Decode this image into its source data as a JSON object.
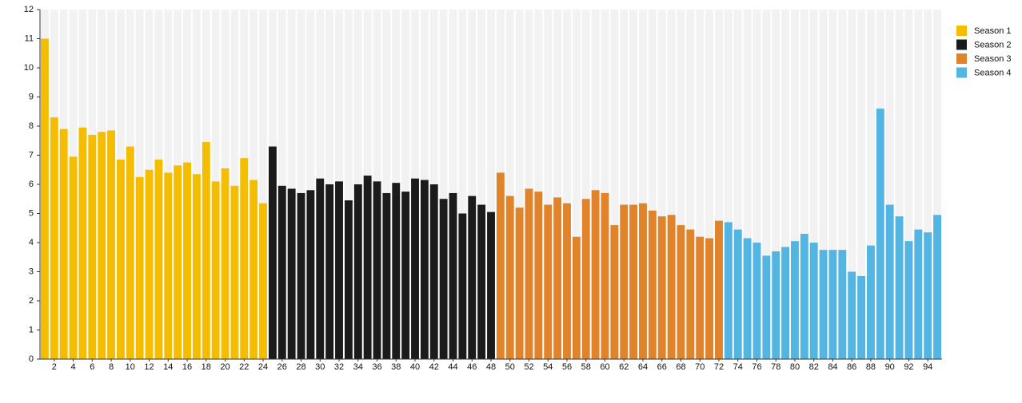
{
  "chart_data": {
    "type": "bar",
    "categories": [
      null,
      2,
      null,
      4,
      null,
      6,
      null,
      8,
      null,
      10,
      null,
      12,
      null,
      14,
      null,
      16,
      null,
      18,
      null,
      20,
      null,
      22,
      null,
      24,
      null,
      26,
      null,
      28,
      null,
      30,
      null,
      32,
      null,
      34,
      null,
      36,
      null,
      38,
      null,
      40,
      null,
      42,
      null,
      44,
      null,
      46,
      null,
      48,
      null,
      50,
      null,
      52,
      null,
      54,
      null,
      56,
      null,
      58,
      null,
      60,
      null,
      62,
      null,
      64,
      null,
      66,
      null,
      68,
      null,
      70,
      null,
      72,
      null,
      74,
      null,
      76,
      null,
      78,
      null,
      80,
      null,
      82,
      null,
      84,
      null,
      86,
      null,
      88,
      null,
      90,
      null,
      92,
      null,
      94,
      null
    ],
    "series": [
      {
        "name": "Season 1",
        "color": "#f5bd00",
        "values": [
          11.0,
          8.3,
          7.9,
          6.95,
          7.95,
          7.7,
          7.8,
          7.85,
          6.85,
          7.3,
          6.25,
          6.5,
          6.85,
          6.4,
          6.65,
          6.75,
          6.35,
          7.45,
          6.1,
          6.55,
          5.95,
          6.9,
          6.15,
          5.35,
          null,
          null,
          null,
          null,
          null,
          null,
          null,
          null,
          null,
          null,
          null,
          null,
          null,
          null,
          null,
          null,
          null,
          null,
          null,
          null,
          null,
          null,
          null,
          null,
          null,
          null,
          null,
          null,
          null,
          null,
          null,
          null,
          null,
          null,
          null,
          null,
          null,
          null,
          null,
          null,
          null,
          null,
          null,
          null,
          null,
          null,
          null,
          null,
          null,
          null,
          null,
          null,
          null,
          null,
          null,
          null,
          null,
          null,
          null,
          null,
          null,
          null,
          null,
          null,
          null,
          null,
          null,
          null,
          null,
          null,
          null
        ]
      },
      {
        "name": "Season 2",
        "color": "#1b1b1b",
        "values": [
          null,
          null,
          null,
          null,
          null,
          null,
          null,
          null,
          null,
          null,
          null,
          null,
          null,
          null,
          null,
          null,
          null,
          null,
          null,
          null,
          null,
          null,
          null,
          null,
          7.3,
          5.95,
          5.85,
          5.7,
          5.8,
          6.2,
          6.0,
          6.1,
          5.45,
          6.0,
          6.3,
          6.1,
          5.7,
          6.05,
          5.75,
          6.2,
          6.15,
          6.0,
          5.5,
          5.7,
          5.0,
          5.6,
          5.3,
          5.05,
          null,
          null,
          null,
          null,
          null,
          null,
          null,
          null,
          null,
          null,
          null,
          null,
          null,
          null,
          null,
          null,
          null,
          null,
          null,
          null,
          null,
          null,
          null,
          null,
          null,
          null,
          null,
          null,
          null,
          null,
          null,
          null,
          null,
          null,
          null,
          null,
          null,
          null,
          null,
          null,
          null,
          null,
          null,
          null,
          null,
          null,
          null
        ]
      },
      {
        "name": "Season 3",
        "color": "#e0832b",
        "values": [
          null,
          null,
          null,
          null,
          null,
          null,
          null,
          null,
          null,
          null,
          null,
          null,
          null,
          null,
          null,
          null,
          null,
          null,
          null,
          null,
          null,
          null,
          null,
          null,
          null,
          null,
          null,
          null,
          null,
          null,
          null,
          null,
          null,
          null,
          null,
          null,
          null,
          null,
          null,
          null,
          null,
          null,
          null,
          null,
          null,
          null,
          null,
          null,
          6.4,
          5.6,
          5.2,
          5.85,
          5.75,
          5.3,
          5.55,
          5.35,
          4.2,
          5.5,
          5.8,
          5.7,
          4.6,
          5.3,
          5.3,
          5.35,
          5.1,
          4.9,
          4.95,
          4.6,
          4.45,
          4.2,
          4.15,
          4.75,
          null,
          null,
          null,
          null,
          null,
          null,
          null,
          null,
          null,
          null,
          null,
          null,
          null,
          null,
          null,
          null,
          null,
          null,
          null,
          null,
          null,
          null,
          null
        ]
      },
      {
        "name": "Season 4",
        "color": "#52b5e2",
        "values": [
          null,
          null,
          null,
          null,
          null,
          null,
          null,
          null,
          null,
          null,
          null,
          null,
          null,
          null,
          null,
          null,
          null,
          null,
          null,
          null,
          null,
          null,
          null,
          null,
          null,
          null,
          null,
          null,
          null,
          null,
          null,
          null,
          null,
          null,
          null,
          null,
          null,
          null,
          null,
          null,
          null,
          null,
          null,
          null,
          null,
          null,
          null,
          null,
          null,
          null,
          null,
          null,
          null,
          null,
          null,
          null,
          null,
          null,
          null,
          null,
          null,
          null,
          null,
          null,
          null,
          null,
          null,
          null,
          null,
          null,
          null,
          null,
          4.7,
          4.45,
          4.15,
          4.0,
          3.55,
          3.7,
          3.85,
          4.05,
          4.3,
          4.0,
          3.75,
          3.75,
          3.75,
          3.0,
          2.85,
          3.9,
          8.6,
          5.3,
          4.9,
          4.05,
          4.45,
          4.35,
          4.95
        ]
      }
    ],
    "ylim": [
      0,
      12
    ],
    "yticks": [
      0,
      1,
      2,
      3,
      4,
      5,
      6,
      7,
      8,
      9,
      10,
      11,
      12
    ],
    "legend": "right"
  }
}
